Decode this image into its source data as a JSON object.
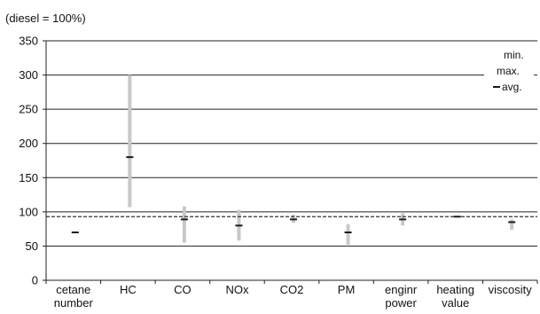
{
  "chart_data": {
    "type": "range",
    "unit_label": "(diesel = 100%)",
    "ylim": [
      0,
      350
    ],
    "yticks": [
      0,
      50,
      100,
      150,
      200,
      250,
      300,
      350
    ],
    "grid": true,
    "reference_line": 93,
    "categories": [
      [
        "cetane",
        "number"
      ],
      [
        "HC"
      ],
      [
        "CO"
      ],
      [
        "NOx"
      ],
      [
        "CO2"
      ],
      [
        "PM"
      ],
      [
        "enginr",
        "power"
      ],
      [
        "heating",
        "value"
      ],
      [
        "viscosity"
      ]
    ],
    "min": [
      70,
      107,
      55,
      58,
      84,
      52,
      80,
      92,
      74
    ],
    "max": [
      70,
      300,
      108,
      103,
      96,
      82,
      98,
      94,
      89
    ],
    "avg": [
      70,
      180,
      89,
      80,
      89,
      70,
      89,
      93,
      85
    ],
    "legend": {
      "position": "top-right",
      "min_label": "min.",
      "max_label": "max.",
      "avg_label": "avg."
    },
    "colors": {
      "range": "#c8c8c8",
      "avg": "#1a1a1a",
      "grid": "#222222",
      "reference": "#333333"
    }
  }
}
